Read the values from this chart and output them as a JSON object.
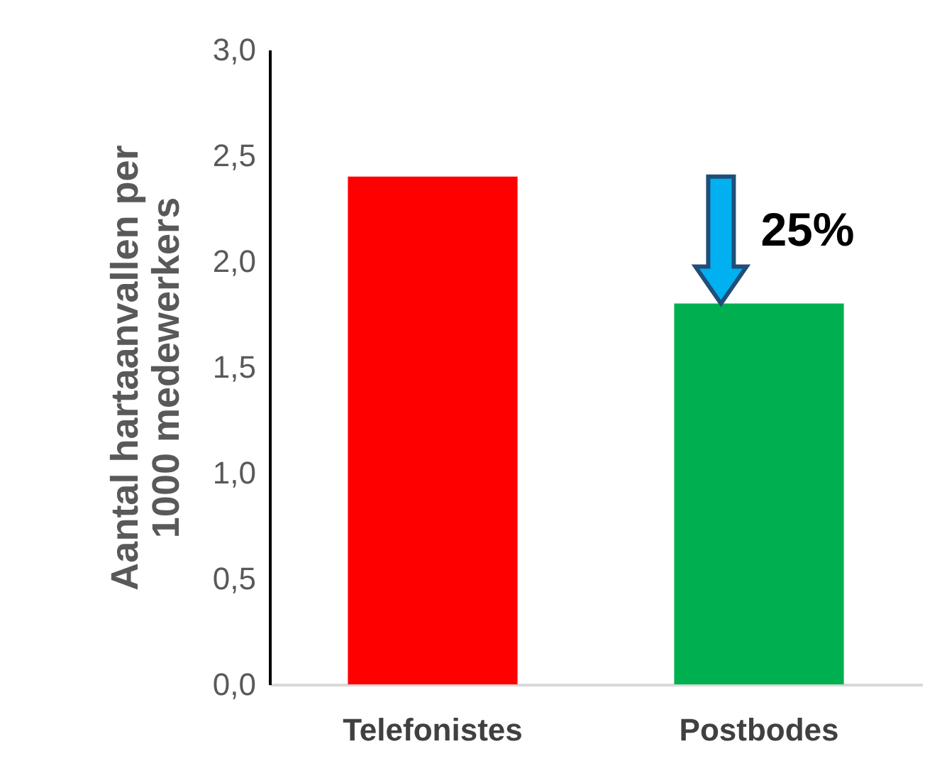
{
  "chart_data": {
    "type": "bar",
    "ylabel": "Aantal hartaanvallen per 1000 medewerkers",
    "categories": [
      "Telefonistes",
      "Postbodes"
    ],
    "values": [
      2.4,
      1.8
    ],
    "colors": [
      "#ff0000",
      "#00b050"
    ],
    "ylim": [
      0,
      3
    ],
    "yticks": [
      {
        "value": 0,
        "label": "0,0"
      },
      {
        "value": 0.5,
        "label": "0,5"
      },
      {
        "value": 1,
        "label": "1,0"
      },
      {
        "value": 1.5,
        "label": "1,5"
      },
      {
        "value": 2,
        "label": "2,0"
      },
      {
        "value": 2.5,
        "label": "2,5"
      },
      {
        "value": 3,
        "label": "3,0"
      }
    ],
    "annotations": [
      "25%"
    ],
    "grid": false,
    "legend": false
  }
}
